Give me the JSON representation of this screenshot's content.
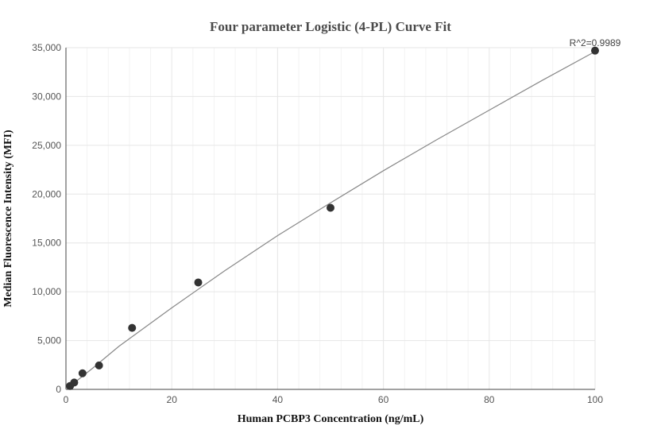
{
  "chart_data": {
    "type": "scatter",
    "title": "Four parameter Logistic (4-PL) Curve Fit",
    "xlabel": "Human PCBP3 Concentration (ng/mL)",
    "ylabel": "Median Fluorescence Intensity (MFI)",
    "xlim": [
      0,
      100
    ],
    "ylim": [
      0,
      35000
    ],
    "xticks": [
      0,
      20,
      40,
      60,
      80,
      100
    ],
    "yticks": [
      0,
      5000,
      10000,
      15000,
      20000,
      25000,
      30000,
      35000
    ],
    "ytick_labels": [
      "0",
      "5,000",
      "10,000",
      "15,000",
      "20,000",
      "25,000",
      "30,000",
      "35,000"
    ],
    "grid": true,
    "annotation": "R^2=0.9989",
    "points": {
      "x": [
        0.78,
        1.56,
        3.13,
        6.25,
        12.5,
        25,
        50,
        100
      ],
      "y": [
        350,
        700,
        1650,
        2450,
        6300,
        10950,
        18600,
        34700
      ]
    },
    "fit_curve": {
      "x": [
        0,
        5,
        10,
        20,
        30,
        40,
        50,
        60,
        70,
        80,
        90,
        100
      ],
      "y": [
        0,
        2150,
        4400,
        8350,
        12150,
        15750,
        19100,
        22400,
        25550,
        28600,
        31650,
        34600
      ]
    },
    "colors": {
      "points": "#333333",
      "curve": "#888888",
      "grid": "#e6e6e6",
      "axis": "#444444"
    }
  }
}
